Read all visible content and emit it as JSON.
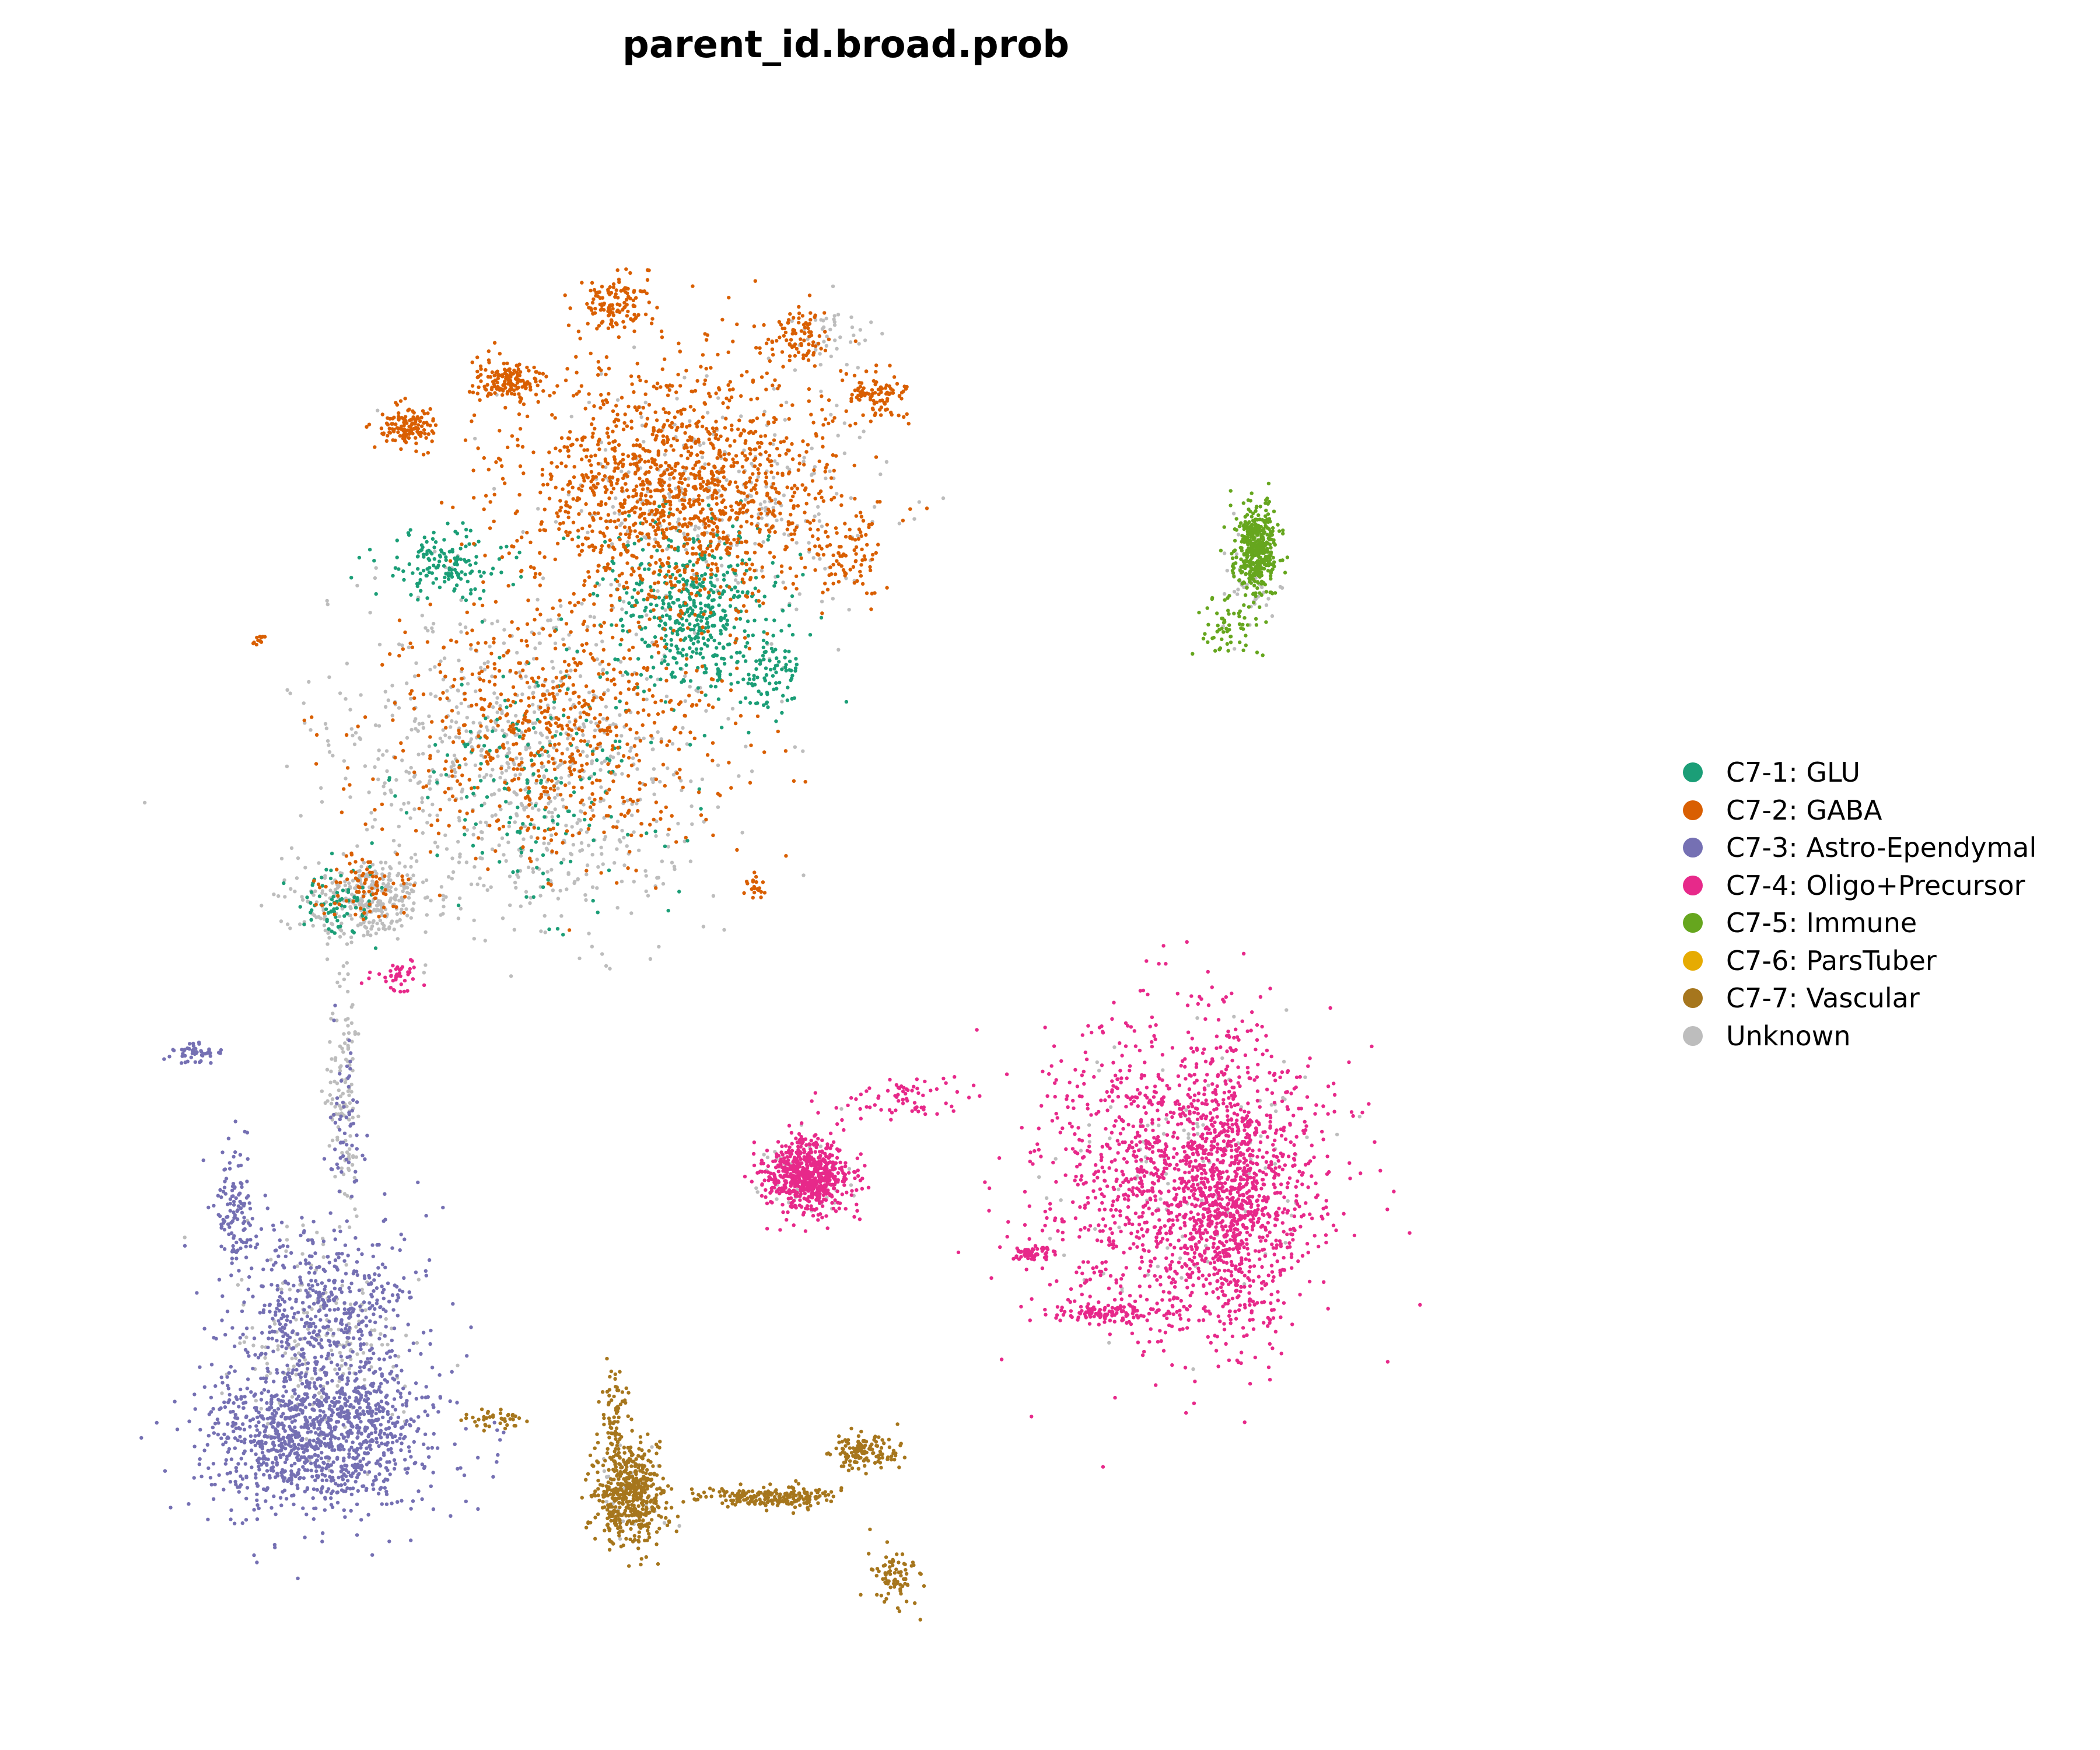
{
  "chart_data": {
    "type": "scatter",
    "title": "parent_id.broad.prob",
    "xlabel": "",
    "ylabel": "",
    "axes_visible": false,
    "grid": false,
    "legend_position": "right",
    "series": [
      {
        "name": "C7-1: GLU",
        "color": "#1b9e77",
        "clusters": [
          {
            "cx": 0.38,
            "cy": 0.3,
            "rx": 0.05,
            "ry": 0.05,
            "n": 500
          },
          {
            "cx": 0.22,
            "cy": 0.27,
            "rx": 0.04,
            "ry": 0.02,
            "n": 150
          },
          {
            "cx": 0.28,
            "cy": 0.41,
            "rx": 0.08,
            "ry": 0.07,
            "n": 180
          },
          {
            "cx": 0.15,
            "cy": 0.49,
            "rx": 0.025,
            "ry": 0.02,
            "n": 80
          },
          {
            "cx": 0.43,
            "cy": 0.34,
            "rx": 0.02,
            "ry": 0.02,
            "n": 80
          }
        ]
      },
      {
        "name": "C7-2: GABA",
        "color": "#d95f02",
        "clusters": [
          {
            "cx": 0.37,
            "cy": 0.22,
            "rx": 0.09,
            "ry": 0.07,
            "n": 1400
          },
          {
            "cx": 0.33,
            "cy": 0.1,
            "rx": 0.02,
            "ry": 0.015,
            "n": 130
          },
          {
            "cx": 0.26,
            "cy": 0.15,
            "rx": 0.02,
            "ry": 0.012,
            "n": 150
          },
          {
            "cx": 0.195,
            "cy": 0.18,
            "rx": 0.015,
            "ry": 0.012,
            "n": 130
          },
          {
            "cx": 0.5,
            "cy": 0.16,
            "rx": 0.018,
            "ry": 0.015,
            "n": 100
          },
          {
            "cx": 0.45,
            "cy": 0.12,
            "rx": 0.02,
            "ry": 0.02,
            "n": 90
          },
          {
            "cx": 0.29,
            "cy": 0.38,
            "rx": 0.1,
            "ry": 0.08,
            "n": 700
          },
          {
            "cx": 0.17,
            "cy": 0.48,
            "rx": 0.03,
            "ry": 0.02,
            "n": 80
          },
          {
            "cx": 0.1,
            "cy": 0.32,
            "rx": 0.004,
            "ry": 0.004,
            "n": 12
          },
          {
            "cx": 0.42,
            "cy": 0.48,
            "rx": 0.006,
            "ry": 0.008,
            "n": 20
          },
          {
            "cx": 0.48,
            "cy": 0.26,
            "rx": 0.02,
            "ry": 0.03,
            "n": 90
          }
        ]
      },
      {
        "name": "C7-3: Astro-Ependymal",
        "color": "#7570b3",
        "clusters": [
          {
            "cx": 0.14,
            "cy": 0.84,
            "rx": 0.065,
            "ry": 0.045,
            "n": 1200
          },
          {
            "cx": 0.145,
            "cy": 0.76,
            "rx": 0.055,
            "ry": 0.05,
            "n": 500
          },
          {
            "cx": 0.085,
            "cy": 0.69,
            "rx": 0.012,
            "ry": 0.035,
            "n": 120
          },
          {
            "cx": 0.06,
            "cy": 0.59,
            "rx": 0.015,
            "ry": 0.006,
            "n": 50
          },
          {
            "cx": 0.155,
            "cy": 0.64,
            "rx": 0.012,
            "ry": 0.06,
            "n": 60
          }
        ]
      },
      {
        "name": "C7-4: Oligo+Precursor",
        "color": "#e7298a",
        "clusters": [
          {
            "cx": 0.7,
            "cy": 0.67,
            "rx": 0.085,
            "ry": 0.09,
            "n": 1400
          },
          {
            "cx": 0.73,
            "cy": 0.69,
            "rx": 0.03,
            "ry": 0.08,
            "n": 600
          },
          {
            "cx": 0.65,
            "cy": 0.76,
            "rx": 0.03,
            "ry": 0.006,
            "n": 120
          },
          {
            "cx": 0.455,
            "cy": 0.67,
            "rx": 0.025,
            "ry": 0.022,
            "n": 650
          },
          {
            "cx": 0.51,
            "cy": 0.62,
            "rx": 0.04,
            "ry": 0.012,
            "n": 70
          },
          {
            "cx": 0.6,
            "cy": 0.72,
            "rx": 0.012,
            "ry": 0.004,
            "n": 60
          },
          {
            "cx": 0.19,
            "cy": 0.54,
            "rx": 0.015,
            "ry": 0.01,
            "n": 40
          }
        ]
      },
      {
        "name": "C7-5: Immune",
        "color": "#66a61e",
        "clusters": [
          {
            "cx": 0.745,
            "cy": 0.26,
            "rx": 0.012,
            "ry": 0.025,
            "n": 420
          },
          {
            "cx": 0.725,
            "cy": 0.31,
            "rx": 0.02,
            "ry": 0.02,
            "n": 60
          }
        ]
      },
      {
        "name": "C7-6: ParsTuber",
        "color": "#e6ab02",
        "clusters": []
      },
      {
        "name": "C7-7: Vascular",
        "color": "#a6761d",
        "clusters": [
          {
            "cx": 0.34,
            "cy": 0.88,
            "rx": 0.02,
            "ry": 0.03,
            "n": 500
          },
          {
            "cx": 0.33,
            "cy": 0.83,
            "rx": 0.008,
            "ry": 0.03,
            "n": 80
          },
          {
            "cx": 0.43,
            "cy": 0.88,
            "rx": 0.04,
            "ry": 0.006,
            "n": 220
          },
          {
            "cx": 0.49,
            "cy": 0.85,
            "rx": 0.02,
            "ry": 0.012,
            "n": 130
          },
          {
            "cx": 0.51,
            "cy": 0.93,
            "rx": 0.015,
            "ry": 0.018,
            "n": 80
          },
          {
            "cx": 0.25,
            "cy": 0.83,
            "rx": 0.02,
            "ry": 0.006,
            "n": 40
          }
        ]
      },
      {
        "name": "Unknown",
        "color": "#bdbdbd",
        "clusters": [
          {
            "cx": 0.27,
            "cy": 0.4,
            "rx": 0.11,
            "ry": 0.1,
            "n": 800
          },
          {
            "cx": 0.17,
            "cy": 0.49,
            "rx": 0.04,
            "ry": 0.025,
            "n": 300
          },
          {
            "cx": 0.155,
            "cy": 0.62,
            "rx": 0.01,
            "ry": 0.07,
            "n": 120
          },
          {
            "cx": 0.14,
            "cy": 0.78,
            "rx": 0.05,
            "ry": 0.06,
            "n": 200
          },
          {
            "cx": 0.4,
            "cy": 0.23,
            "rx": 0.09,
            "ry": 0.07,
            "n": 300
          },
          {
            "cx": 0.7,
            "cy": 0.67,
            "rx": 0.08,
            "ry": 0.08,
            "n": 120
          },
          {
            "cx": 0.455,
            "cy": 0.67,
            "rx": 0.03,
            "ry": 0.03,
            "n": 50
          },
          {
            "cx": 0.74,
            "cy": 0.28,
            "rx": 0.015,
            "ry": 0.03,
            "n": 40
          },
          {
            "cx": 0.34,
            "cy": 0.88,
            "rx": 0.02,
            "ry": 0.03,
            "n": 30
          },
          {
            "cx": 0.47,
            "cy": 0.12,
            "rx": 0.02,
            "ry": 0.02,
            "n": 40
          }
        ]
      }
    ]
  }
}
